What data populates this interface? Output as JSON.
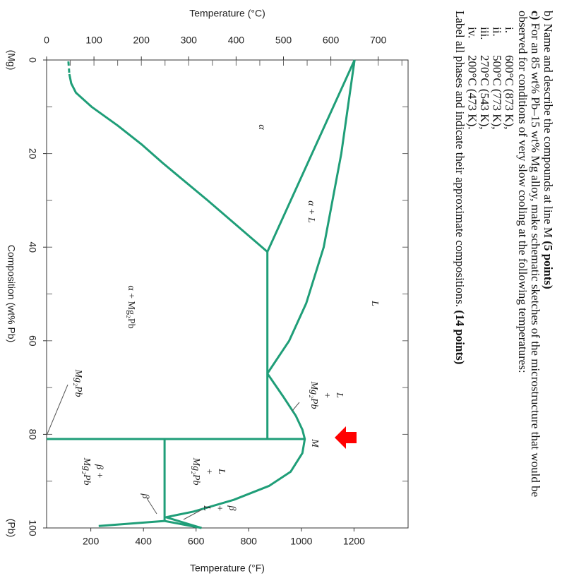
{
  "question": {
    "b_text": "b) Name and describe the compounds at line M",
    "b_points": "(5 points)",
    "c_label": "c)",
    "c_line1": "For an 85 wt% Pb–15 wt% Mg alloy, make schematic sketches of the microstructure that would be",
    "c_line2": "observed for conditions of very slow cooling at the following temperatures:",
    "items": [
      {
        "numeral": "i.",
        "text": "600°C (873 K),"
      },
      {
        "numeral": "ii.",
        "text": "500°C (773 K),"
      },
      {
        "numeral": "iii.",
        "text": "270°C (543 K),"
      },
      {
        "numeral": "iv.",
        "text": "200°C (473 K)."
      }
    ],
    "final_text": "Label all phases and indicate their approximate compositions.",
    "final_points": "(14 points)"
  },
  "diagram": {
    "y_title": "Temperature (°C)",
    "y_ticks": [
      "0",
      "100",
      "200",
      "300",
      "400",
      "500",
      "600",
      "700"
    ],
    "y2_title": "Temperature (°F)",
    "y2_ticks": [
      "200",
      "400",
      "600",
      "800",
      "1000",
      "1200"
    ],
    "x_title": "Composition (wt% Pb)",
    "x_ticks": [
      "0",
      "20",
      "40",
      "60",
      "80",
      "100"
    ],
    "x_left": "(Mg)",
    "x_right": "(Pb)",
    "regions": [
      {
        "lines": [
          "α"
        ]
      },
      {
        "lines": [
          "α + L"
        ]
      },
      {
        "lines": [
          "L"
        ]
      },
      {
        "lines": [
          "α + Mg₂Pb"
        ]
      },
      {
        "lines": [
          "L",
          "+",
          "Mg₂Pb"
        ]
      },
      {
        "lines": [
          "M"
        ]
      },
      {
        "lines": [
          "L",
          "+",
          "Mg₂Pb"
        ]
      },
      {
        "lines": [
          "β +",
          "Mg₂Pb"
        ]
      },
      {
        "lines": [
          "β",
          "+",
          "L"
        ]
      },
      {
        "lines": [
          "β"
        ]
      },
      {
        "lines": [
          "Mg₂Pb"
        ]
      }
    ]
  }
}
